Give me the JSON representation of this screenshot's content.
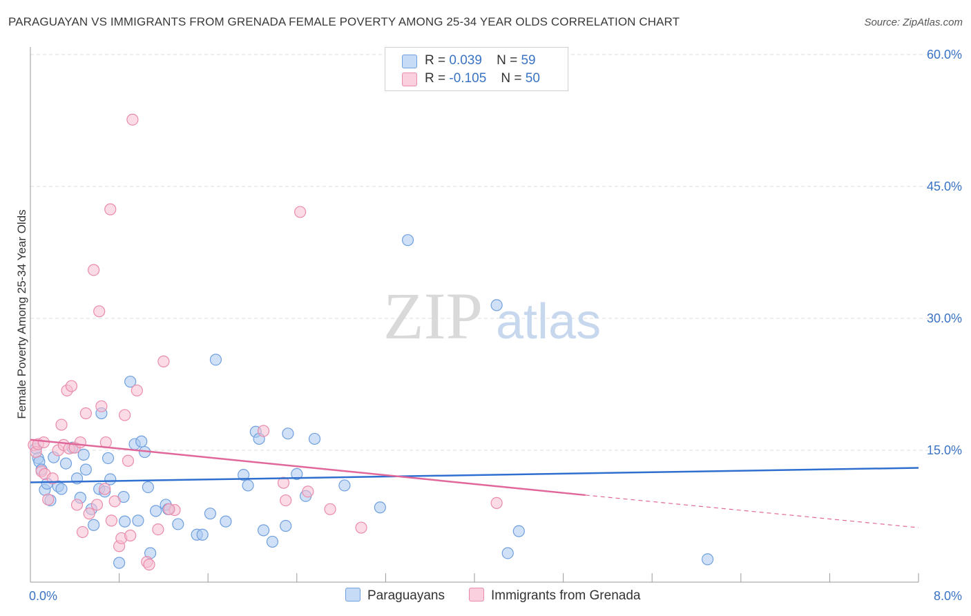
{
  "title": "PARAGUAYAN VS IMMIGRANTS FROM GRENADA FEMALE POVERTY AMONG 25-34 YEAR OLDS CORRELATION CHART",
  "source": "Source: ZipAtlas.com",
  "watermark": {
    "zip": "ZIP",
    "atlas": "atlas"
  },
  "legend": {
    "r_label": "R =",
    "n_label": "N =",
    "series": [
      {
        "r": "0.039",
        "n": "59"
      },
      {
        "r": "-0.105",
        "n": "50"
      }
    ]
  },
  "bottom_legend": [
    "Paraguayans",
    "Immigrants from Grenada"
  ],
  "colors": {
    "blue_fill": "#a9c8f0",
    "blue_stroke": "#6f9fde",
    "blue_line": "#2f6fcf",
    "pink_fill": "#f7bfd2",
    "pink_stroke": "#ea8aaa",
    "pink_line": "#e0679a",
    "axis_text": "#3a73c4"
  },
  "chart_data": {
    "type": "scatter",
    "title": "PARAGUAYAN VS IMMIGRANTS FROM GRENADA FEMALE POVERTY AMONG 25-34 YEAR OLDS CORRELATION CHART",
    "xlabel": "",
    "ylabel": "Female Poverty Among 25-34 Year Olds",
    "xlim": [
      0,
      8
    ],
    "ylim": [
      0,
      60
    ],
    "x_tick_labels": [
      {
        "value": 0,
        "label": "0.0%"
      },
      {
        "value": 8,
        "label": "8.0%"
      }
    ],
    "y_tick_labels": [
      {
        "value": 15,
        "label": "15.0%"
      },
      {
        "value": 30,
        "label": "30.0%"
      },
      {
        "value": 45,
        "label": "45.0%"
      },
      {
        "value": 60,
        "label": "60.0%"
      }
    ],
    "series": [
      {
        "name": "Paraguayans",
        "color": "blue",
        "points": [
          [
            0.05,
            15.2
          ],
          [
            0.07,
            14.1
          ],
          [
            0.08,
            13.7
          ],
          [
            0.1,
            12.8
          ],
          [
            0.13,
            10.5
          ],
          [
            0.15,
            11.2
          ],
          [
            0.18,
            9.3
          ],
          [
            0.21,
            14.2
          ],
          [
            0.25,
            10.9
          ],
          [
            0.28,
            10.6
          ],
          [
            0.32,
            13.5
          ],
          [
            0.38,
            15.3
          ],
          [
            0.42,
            11.8
          ],
          [
            0.45,
            9.6
          ],
          [
            0.48,
            14.5
          ],
          [
            0.5,
            12.8
          ],
          [
            0.55,
            8.3
          ],
          [
            0.57,
            6.5
          ],
          [
            0.62,
            10.6
          ],
          [
            0.64,
            19.2
          ],
          [
            0.67,
            10.3
          ],
          [
            0.7,
            14.1
          ],
          [
            0.72,
            11.7
          ],
          [
            0.8,
            2.2
          ],
          [
            0.84,
            9.7
          ],
          [
            0.85,
            6.9
          ],
          [
            0.9,
            22.8
          ],
          [
            0.94,
            15.7
          ],
          [
            0.97,
            7.0
          ],
          [
            1.0,
            16.0
          ],
          [
            1.03,
            14.8
          ],
          [
            1.06,
            10.8
          ],
          [
            1.08,
            3.3
          ],
          [
            1.13,
            8.1
          ],
          [
            1.22,
            8.8
          ],
          [
            1.24,
            8.3
          ],
          [
            1.33,
            6.6
          ],
          [
            1.5,
            5.4
          ],
          [
            1.55,
            5.4
          ],
          [
            1.62,
            7.8
          ],
          [
            1.67,
            25.3
          ],
          [
            1.76,
            6.9
          ],
          [
            1.92,
            12.2
          ],
          [
            1.96,
            11.0
          ],
          [
            2.03,
            17.1
          ],
          [
            2.06,
            16.3
          ],
          [
            2.1,
            5.9
          ],
          [
            2.18,
            4.6
          ],
          [
            2.3,
            6.4
          ],
          [
            2.32,
            16.9
          ],
          [
            2.4,
            12.3
          ],
          [
            2.48,
            9.8
          ],
          [
            2.56,
            16.3
          ],
          [
            2.83,
            11.0
          ],
          [
            3.15,
            8.5
          ],
          [
            3.4,
            38.9
          ],
          [
            4.2,
            31.5
          ],
          [
            4.3,
            3.3
          ],
          [
            4.4,
            5.8
          ],
          [
            6.1,
            2.6
          ]
        ]
      },
      {
        "name": "Immigrants from Grenada",
        "color": "pink",
        "points": [
          [
            0.03,
            15.6
          ],
          [
            0.05,
            14.8
          ],
          [
            0.07,
            15.7
          ],
          [
            0.1,
            12.6
          ],
          [
            0.12,
            15.9
          ],
          [
            0.13,
            12.3
          ],
          [
            0.16,
            9.4
          ],
          [
            0.2,
            11.8
          ],
          [
            0.25,
            15.0
          ],
          [
            0.28,
            17.9
          ],
          [
            0.3,
            15.6
          ],
          [
            0.33,
            21.8
          ],
          [
            0.35,
            15.2
          ],
          [
            0.37,
            22.3
          ],
          [
            0.4,
            15.3
          ],
          [
            0.42,
            8.8
          ],
          [
            0.45,
            15.9
          ],
          [
            0.47,
            5.7
          ],
          [
            0.5,
            19.2
          ],
          [
            0.53,
            7.8
          ],
          [
            0.57,
            35.5
          ],
          [
            0.6,
            8.8
          ],
          [
            0.62,
            30.8
          ],
          [
            0.64,
            20.0
          ],
          [
            0.67,
            10.6
          ],
          [
            0.68,
            15.9
          ],
          [
            0.72,
            42.4
          ],
          [
            0.73,
            7.0
          ],
          [
            0.76,
            9.2
          ],
          [
            0.8,
            4.1
          ],
          [
            0.82,
            5.0
          ],
          [
            0.85,
            19.0
          ],
          [
            0.88,
            13.8
          ],
          [
            0.9,
            5.3
          ],
          [
            0.92,
            52.6
          ],
          [
            0.96,
            21.8
          ],
          [
            1.05,
            2.3
          ],
          [
            1.07,
            2.0
          ],
          [
            1.15,
            6.0
          ],
          [
            1.2,
            25.1
          ],
          [
            1.3,
            8.2
          ],
          [
            2.1,
            17.2
          ],
          [
            2.28,
            11.3
          ],
          [
            2.3,
            9.3
          ],
          [
            2.43,
            42.1
          ],
          [
            2.5,
            10.3
          ],
          [
            2.7,
            8.3
          ],
          [
            2.98,
            6.2
          ],
          [
            4.2,
            9.0
          ],
          [
            1.25,
            8.3
          ]
        ]
      }
    ],
    "trend_lines": [
      {
        "series": "Paraguayans",
        "x0": 0,
        "y0": 11.35,
        "x1": 8,
        "y1": 13.0,
        "style": "solid"
      },
      {
        "series": "Immigrants from Grenada",
        "x0": 0,
        "y0": 16.2,
        "x1": 5.0,
        "y1": 9.9,
        "style": "solid"
      },
      {
        "series": "Immigrants from Grenada",
        "x0": 5.0,
        "y0": 9.9,
        "x1": 8,
        "y1": 6.2,
        "style": "dashed"
      }
    ]
  }
}
